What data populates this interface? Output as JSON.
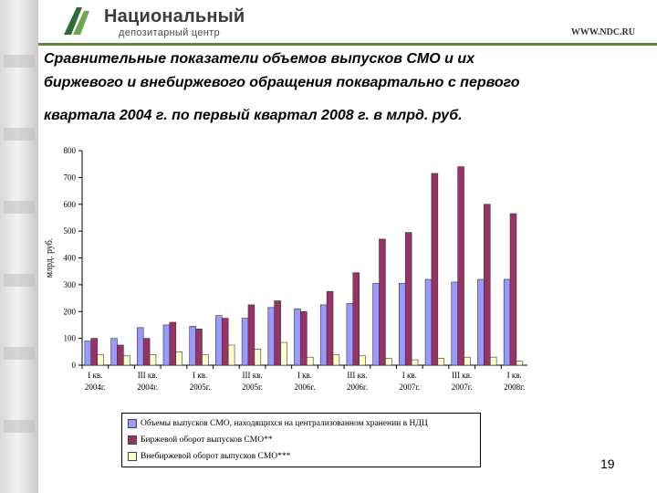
{
  "header": {
    "logo_line1": "Национальный",
    "logo_line2": "депозитарный центр",
    "url": "WWW.NDC.RU"
  },
  "title": {
    "line1": "Сравнительные показатели объемов выпусков СМО и их",
    "line2": "биржевого и внебиржевого обращения поквартально с первого",
    "line3": "квартала 2004 г. по первый квартал 2008 г. в млрд. руб."
  },
  "page_number": "19",
  "colors": {
    "series1": "#9999ff",
    "series2": "#993366",
    "series3": "#ffffcc",
    "rule": "#5a8a3a"
  },
  "chart_data": {
    "type": "bar",
    "ylabel": "млрд. руб.",
    "ylim": [
      0,
      800
    ],
    "yticks": [
      0,
      100,
      200,
      300,
      400,
      500,
      600,
      700,
      800
    ],
    "categories": [
      "Q1 2004",
      "Q2 2004",
      "Q3 2004",
      "Q4 2004",
      "Q1 2005",
      "Q2 2005",
      "Q3 2005",
      "Q4 2005",
      "Q1 2006",
      "Q2 2006",
      "Q3 2006",
      "Q4 2006",
      "Q1 2007",
      "Q2 2007",
      "Q3 2007",
      "Q4 2007",
      "Q1 2008"
    ],
    "tick_labels": [
      {
        "index": 0,
        "line1": "I кв.",
        "line2": "2004г."
      },
      {
        "index": 2,
        "line1": "III кв.",
        "line2": "2004г."
      },
      {
        "index": 4,
        "line1": "I кв.",
        "line2": "2005г."
      },
      {
        "index": 6,
        "line1": "III кв.",
        "line2": "2005г."
      },
      {
        "index": 8,
        "line1": "I кв.",
        "line2": "2006г."
      },
      {
        "index": 10,
        "line1": "III кв.",
        "line2": "2006г."
      },
      {
        "index": 12,
        "line1": "I кв.",
        "line2": "2007г."
      },
      {
        "index": 14,
        "line1": "III кв.",
        "line2": "2007г."
      },
      {
        "index": 16,
        "line1": "I кв.",
        "line2": "2008г."
      }
    ],
    "series": [
      {
        "name": "Объемы выпусков СМО, находящихся на централизованном хранении в НДЦ",
        "values": [
          90,
          100,
          140,
          150,
          145,
          185,
          175,
          215,
          210,
          225,
          230,
          305,
          305,
          320,
          310,
          320,
          320
        ]
      },
      {
        "name": "Биржевой оборот выпусков СМО**",
        "values": [
          100,
          75,
          100,
          160,
          135,
          175,
          225,
          240,
          200,
          275,
          345,
          470,
          495,
          715,
          740,
          600,
          565
        ]
      },
      {
        "name": "Внебиржевой оборот выпусков СМО***",
        "values": [
          40,
          35,
          40,
          50,
          40,
          75,
          60,
          85,
          30,
          40,
          35,
          25,
          20,
          25,
          30,
          30,
          15
        ]
      }
    ],
    "legend_position": "bottom",
    "grid": false
  }
}
